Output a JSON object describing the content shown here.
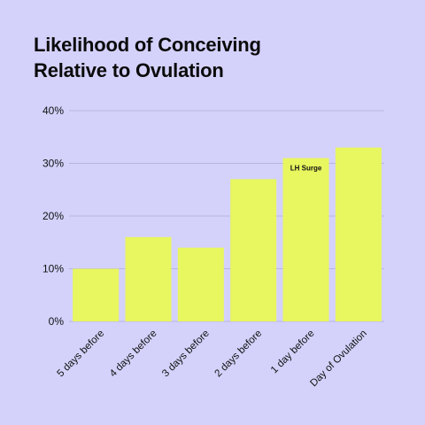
{
  "colors": {
    "background": "#d4d2fb",
    "bar": "#e8f65f",
    "gridline": "#b7b5de",
    "text": "#111111"
  },
  "chart_data": {
    "type": "bar",
    "title_lines": [
      "Likelihood of Conceiving",
      "Relative to Ovulation"
    ],
    "categories": [
      "5 days before",
      "4 days before",
      "3 days before",
      "2 days before",
      "1 day before",
      "Day of Ovulation"
    ],
    "values": [
      10,
      16,
      14,
      27,
      31,
      33
    ],
    "unit": "%",
    "ylim": [
      0,
      40
    ],
    "yticks": [
      "0%",
      "10%",
      "20%",
      "30%",
      "40%"
    ],
    "ytick_values": [
      0,
      10,
      20,
      30,
      40
    ],
    "grid": true,
    "legend": "none",
    "annotations": [
      {
        "category": "1 day before",
        "text": "LH Surge"
      }
    ]
  }
}
